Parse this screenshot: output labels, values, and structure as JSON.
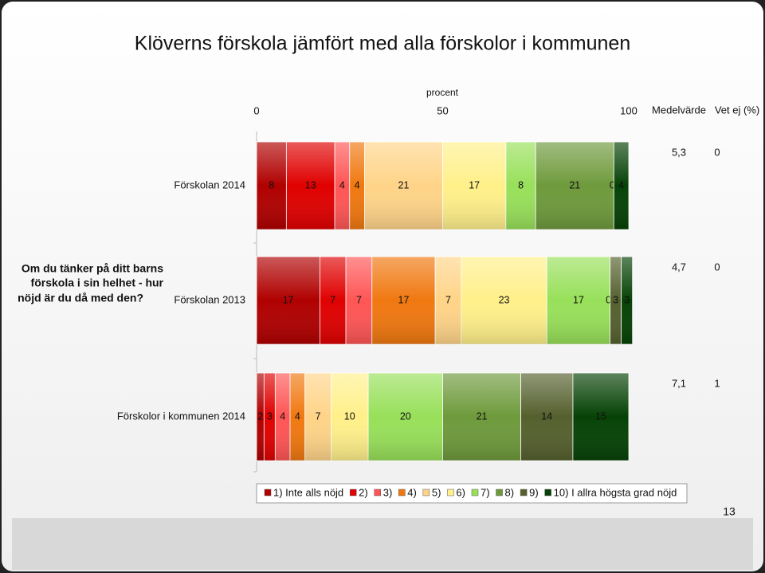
{
  "title": "Klöverns förskola jämfört med alla förskolor i kommunen",
  "question": [
    "Om du tänker på ditt barns",
    "förskola i sin helhet - hur",
    "nöjd är du då med den?"
  ],
  "page_number": "13",
  "chart_data": {
    "type": "stacked-bar-horizontal",
    "xlabel": "procent",
    "xlim": [
      0,
      100
    ],
    "xticks": [
      0,
      50,
      100
    ],
    "categories": [
      "Förskolan 2014",
      "Förskolan 2013",
      "Förskolor i kommunen 2014"
    ],
    "series": [
      {
        "name": "1) Inte alls nöjd",
        "color": "#b00000",
        "values": [
          8,
          17,
          2
        ]
      },
      {
        "name": "2)",
        "color": "#e00000",
        "values": [
          13,
          7,
          3
        ]
      },
      {
        "name": "3)",
        "color": "#ff5555",
        "values": [
          4,
          7,
          4
        ]
      },
      {
        "name": "4)",
        "color": "#f07810",
        "values": [
          4,
          17,
          4
        ]
      },
      {
        "name": "5)",
        "color": "#ffd488",
        "values": [
          21,
          7,
          7
        ]
      },
      {
        "name": "6)",
        "color": "#fff08a",
        "values": [
          17,
          23,
          10
        ]
      },
      {
        "name": "7)",
        "color": "#98e05a",
        "values": [
          8,
          17,
          20
        ]
      },
      {
        "name": "8)",
        "color": "#6e9a3c",
        "values": [
          21,
          0,
          21
        ]
      },
      {
        "name": "9)",
        "color": "#55602e",
        "values": [
          0,
          3,
          14
        ]
      },
      {
        "name": "10) I allra högsta grad nöjd",
        "color": "#064206",
        "values": [
          4,
          3,
          15
        ]
      }
    ],
    "mean": {
      "name": "Medelvärde",
      "values": [
        5.3,
        4.7,
        7.1
      ],
      "value_labels": [
        "5,3",
        "4,7",
        "7,1"
      ]
    },
    "dont_know": {
      "name": "Vet ej (%)",
      "values": [
        0,
        0,
        1
      ]
    }
  }
}
